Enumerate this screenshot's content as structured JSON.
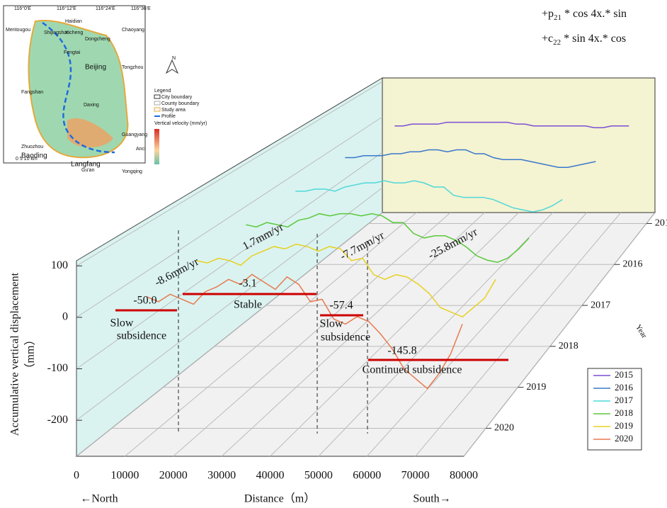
{
  "chart_data": {
    "type": "line3d",
    "x_label": "Distance（m）",
    "x_left": "←North",
    "x_right": "South→",
    "y_label": [
      "Accumulative vertical displacement",
      "（mm）"
    ],
    "z_label": "Year",
    "xlim": [
      0,
      80000
    ],
    "xticks": [
      0,
      10000,
      20000,
      30000,
      40000,
      50000,
      60000,
      70000,
      80000
    ],
    "ylim": [
      -270,
      110
    ],
    "yticks": [
      100,
      0,
      -100,
      -200
    ],
    "grid": true,
    "legend": "lower right",
    "x": [
      7500,
      10000,
      12500,
      15000,
      17500,
      20000,
      22500,
      25000,
      27500,
      30000,
      32500,
      35000,
      37500,
      40000,
      42500,
      45000,
      47500,
      50000,
      52500,
      55000,
      57500,
      60000,
      62500,
      65000,
      67500,
      70000,
      72500,
      75000
    ],
    "series": [
      {
        "name": "2015",
        "color": "#7b4fd6",
        "values": [
          0,
          0,
          5,
          5,
          5,
          5,
          10,
          10,
          10,
          10,
          10,
          10,
          10,
          10,
          5,
          5,
          0,
          0,
          0,
          0,
          0,
          0,
          0,
          -5,
          -5,
          0,
          0,
          0
        ]
      },
      {
        "name": "2016",
        "color": "#3a78c9",
        "values": [
          5,
          5,
          10,
          10,
          10,
          15,
          15,
          20,
          20,
          25,
          25,
          20,
          25,
          25,
          15,
          15,
          5,
          0,
          0,
          0,
          -5,
          -10,
          -15,
          -20,
          -20,
          -15,
          -10,
          -5
        ]
      },
      {
        "name": "2017",
        "color": "#4fd8d8",
        "values": [
          5,
          5,
          10,
          10,
          5,
          15,
          20,
          25,
          25,
          30,
          25,
          25,
          30,
          25,
          15,
          15,
          -5,
          -10,
          -10,
          -10,
          -15,
          -25,
          -35,
          -40,
          -45,
          -40,
          -30,
          -15
        ]
      },
      {
        "name": "2018",
        "color": "#5ac83a",
        "values": [
          5,
          0,
          10,
          5,
          0,
          15,
          20,
          30,
          25,
          30,
          30,
          25,
          30,
          25,
          10,
          10,
          -15,
          -25,
          -20,
          -20,
          -30,
          -45,
          -65,
          -75,
          -80,
          -70,
          -50,
          -25
        ]
      },
      {
        "name": "2019",
        "color": "#e8d020",
        "values": [
          0,
          -5,
          5,
          0,
          -10,
          10,
          20,
          30,
          25,
          35,
          30,
          20,
          30,
          25,
          0,
          5,
          -30,
          -40,
          -30,
          -35,
          -50,
          -70,
          -100,
          -110,
          -120,
          -100,
          -80,
          -40
        ]
      },
      {
        "name": "2020",
        "color": "#e87a50",
        "values": [
          -5,
          -15,
          0,
          -10,
          -20,
          5,
          15,
          30,
          20,
          40,
          25,
          10,
          35,
          20,
          -15,
          -10,
          -50,
          -60,
          -45,
          -55,
          -80,
          -110,
          -150,
          -170,
          -190,
          -160,
          -120,
          -60
        ]
      }
    ],
    "annotations": [
      "-8.6mm/yr",
      "1.7mm/yr",
      "-7.7mm/yr",
      "-25.8mm/yr",
      "-50.0",
      "-3.1",
      "-57.4",
      "-145.8",
      "Stable",
      "Continued subsidence"
    ],
    "stage_labels": [
      [
        "Slow",
        "subsidence"
      ],
      [
        "Slow",
        "subsidence"
      ]
    ]
  },
  "equation": [
    {
      "lead": "+p",
      "sub": "21",
      "rest": " * cos 4x.* sin"
    },
    {
      "lead": "+c",
      "sub": "22",
      "rest": " * sin 4x.* cos"
    }
  ],
  "inset": {
    "labels": [
      "116°0'E",
      "116°12'E",
      "116°24'E",
      "116°36'E",
      "Haidian",
      "Mentougou",
      "Shijingshan",
      "Xicheng",
      "Chaoyang",
      "Dongcheng",
      "Fengtai",
      "Beijing",
      "Tongzhou",
      "Fangshan",
      "Daxing",
      "Guangyang",
      "Anci",
      "Zhuozhou",
      "Baoding",
      "Langfang",
      "Gu'an",
      "Yongqing",
      "0  5  10 km",
      "N"
    ],
    "legend": [
      "Legend",
      "City boundary",
      "County boundary",
      "Study area",
      "Profile",
      "Vertical velocity (mm/yr)"
    ]
  }
}
